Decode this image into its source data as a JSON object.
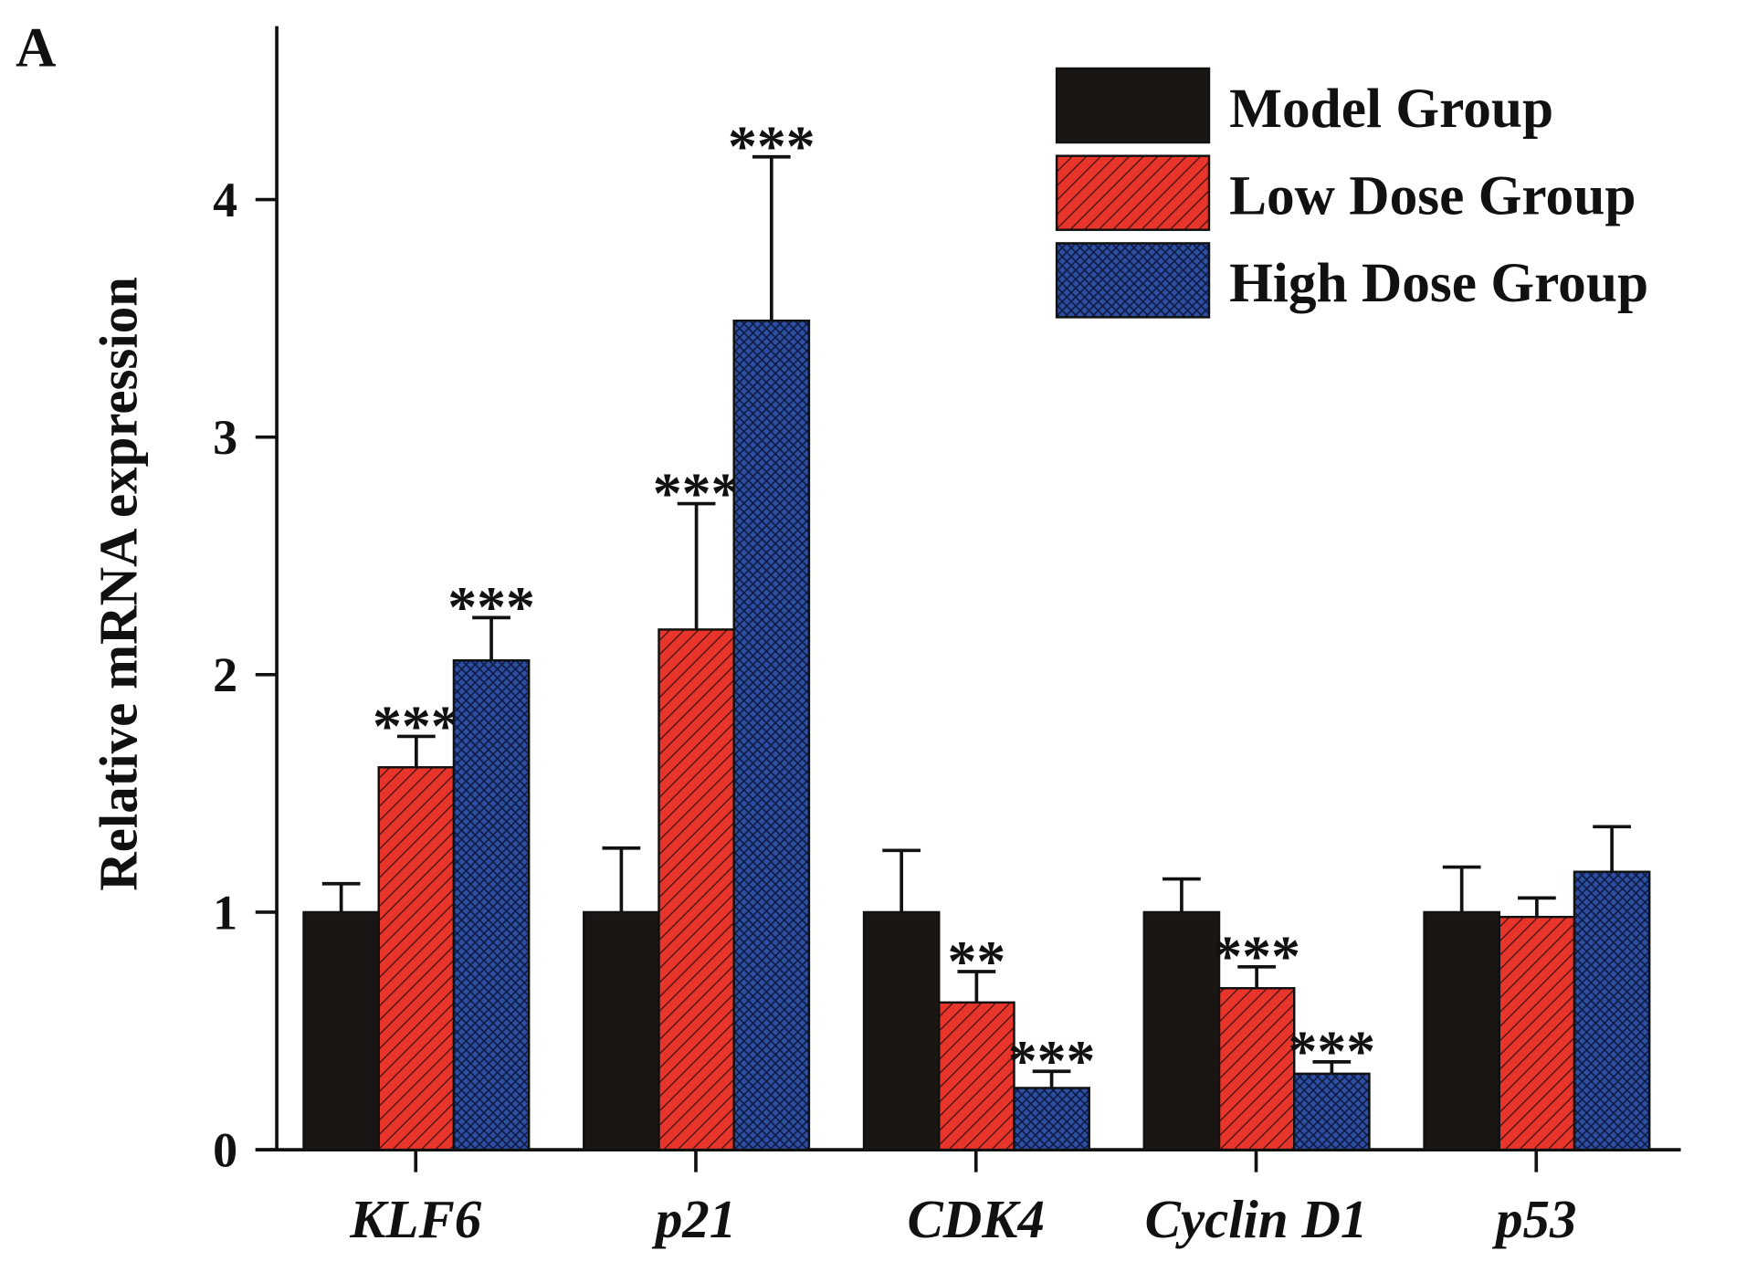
{
  "panel_label": "A",
  "chart_data": {
    "type": "bar",
    "title": "",
    "xlabel": "",
    "ylabel": "Relative mRNA expression",
    "ylim": [
      0,
      4.73
    ],
    "yticks": [
      0,
      1,
      2,
      3,
      4
    ],
    "grid": false,
    "legend_position": "top-right",
    "categories": [
      "KLF6",
      "p21",
      "CDK4",
      "Cyclin D1",
      "p53"
    ],
    "series": [
      {
        "name": "Model Group",
        "color": "#1a1614",
        "pattern": "solid",
        "values": [
          1.0,
          1.0,
          1.0,
          1.0,
          1.0
        ],
        "error_top": [
          1.12,
          1.27,
          1.26,
          1.14,
          1.19
        ],
        "significance": [
          "",
          "",
          "",
          "",
          ""
        ]
      },
      {
        "name": "Low Dose Group",
        "color": "#e8352b",
        "pattern": "diagonal-hatch",
        "values": [
          1.61,
          2.19,
          0.62,
          0.68,
          0.98
        ],
        "error_top": [
          1.74,
          2.72,
          0.75,
          0.77,
          1.06
        ],
        "significance": [
          "***",
          "***",
          "**",
          "***",
          ""
        ]
      },
      {
        "name": "High Dose Group",
        "color": "#2e4ea0",
        "pattern": "crosshatch",
        "values": [
          2.06,
          3.49,
          0.26,
          0.32,
          1.17
        ],
        "error_top": [
          2.24,
          4.18,
          0.33,
          0.37,
          1.36
        ],
        "significance": [
          "***",
          "***",
          "***",
          "***",
          ""
        ]
      }
    ]
  }
}
